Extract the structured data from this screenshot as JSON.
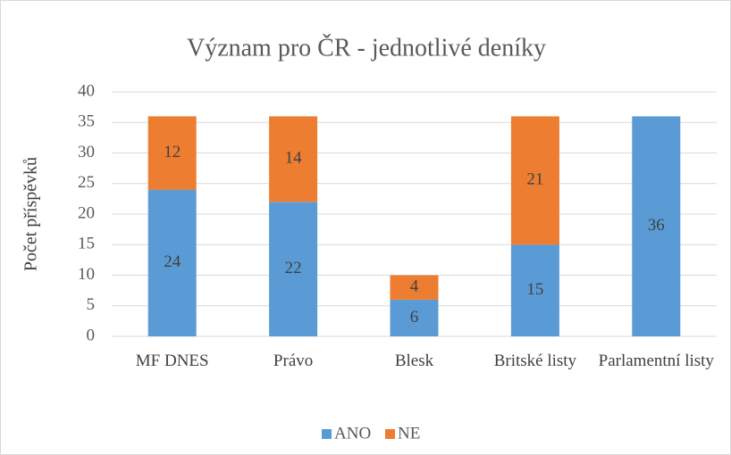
{
  "chart_data": {
    "type": "stacked_bar",
    "title": "Význam pro ČR - jednotlivé deníky",
    "y_label": "Počet příspěvků",
    "categories": [
      "MF DNES",
      "Právo",
      "Blesk",
      "Britské listy",
      "Parlamentní listy"
    ],
    "series": [
      {
        "name": "ANO",
        "color": "#5b9bd5",
        "values": [
          24,
          22,
          6,
          15,
          36
        ]
      },
      {
        "name": "NE",
        "color": "#ed7d31",
        "values": [
          12,
          14,
          4,
          21,
          null
        ]
      }
    ],
    "ylim": [
      0,
      40
    ],
    "yticks": [
      0,
      5,
      10,
      15,
      20,
      25,
      30,
      35,
      40
    ],
    "grid": true,
    "legend": "bottom"
  }
}
